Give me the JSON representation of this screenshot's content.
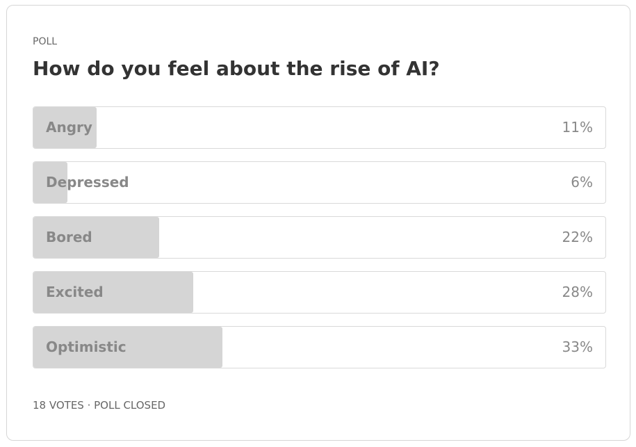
{
  "poll": {
    "kicker": "POLL",
    "question": "How do you feel about the rise of AI?",
    "options": [
      {
        "label": "Angry",
        "value": 11,
        "value_label": "11%"
      },
      {
        "label": "Depressed",
        "value": 6,
        "value_label": "6%"
      },
      {
        "label": "Bored",
        "value": 22,
        "value_label": "22%"
      },
      {
        "label": "Excited",
        "value": 28,
        "value_label": "28%"
      },
      {
        "label": "Optimistic",
        "value": 33,
        "value_label": "33%"
      }
    ],
    "footer": "18 VOTES · POLL CLOSED"
  }
}
